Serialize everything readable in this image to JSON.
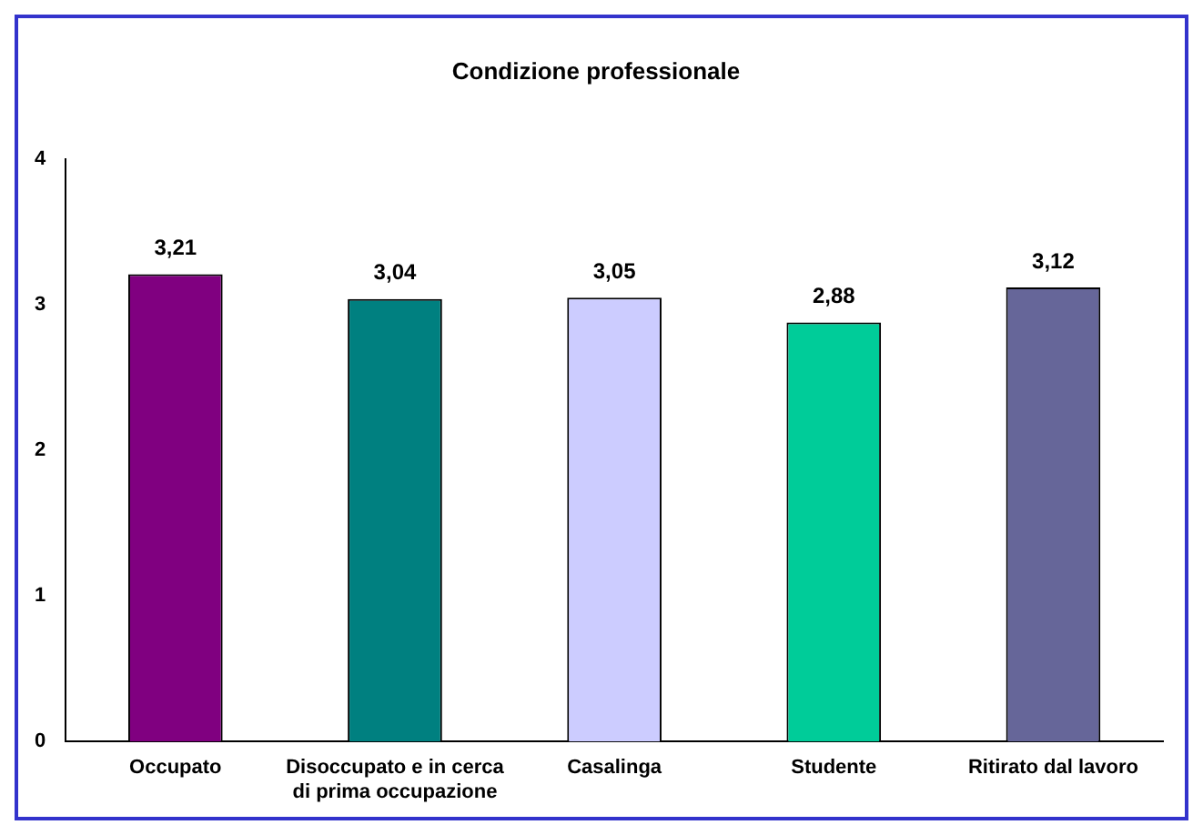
{
  "chart_data": {
    "type": "bar",
    "title": "Condizione professionale",
    "categories": [
      "Occupato",
      "Disoccupato e in cerca di prima occupazione",
      "Casalinga",
      "Studente",
      "Ritirato dal lavoro"
    ],
    "values": [
      3.21,
      3.04,
      3.05,
      2.88,
      3.12
    ],
    "colors": [
      "#800080",
      "#008080",
      "#ccccff",
      "#00cc99",
      "#666699"
    ],
    "value_labels": [
      "3,21",
      "3,04",
      "3,05",
      "2,88",
      "3,12"
    ],
    "ylim": [
      0,
      4
    ],
    "yticks": [
      0,
      1,
      2,
      3,
      4
    ],
    "grid": false,
    "legend": false
  }
}
